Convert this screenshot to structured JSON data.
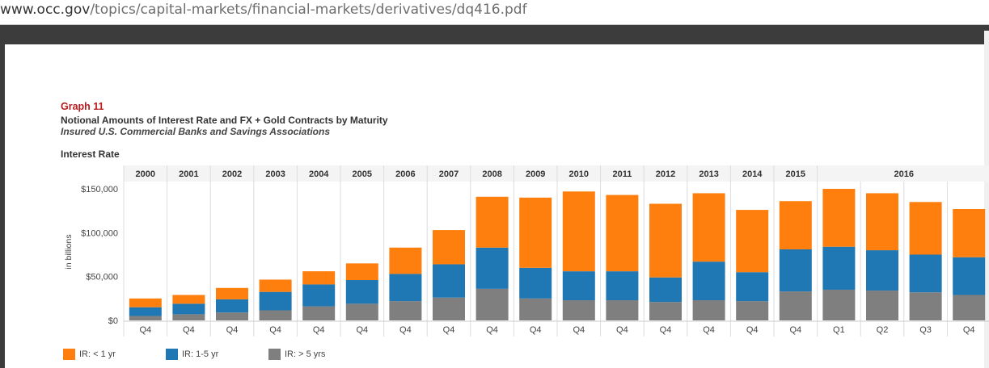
{
  "browser": {
    "url_host": "www.occ.gov",
    "url_path": "/topics/capital-markets/financial-markets/derivatives/dq416.pdf"
  },
  "graph": {
    "label": "Graph 11",
    "title": "Notional Amounts of Interest Rate and FX + Gold Contracts by Maturity",
    "subtitle": "Insured U.S. Commercial Banks and Savings Associations",
    "section": "Interest Rate"
  },
  "chart_data": {
    "type": "bar",
    "stacked": true,
    "title": "Interest Rate",
    "ylabel": "in billions",
    "xlabel": "",
    "ylim": [
      0,
      150000
    ],
    "yticks": [
      0,
      50000,
      100000,
      150000
    ],
    "ytick_labels": [
      "$0",
      "$50,000",
      "$100,000",
      "$150,000"
    ],
    "years": [
      "2000",
      "2001",
      "2002",
      "2003",
      "2004",
      "2005",
      "2006",
      "2007",
      "2008",
      "2009",
      "2010",
      "2011",
      "2012",
      "2013",
      "2014",
      "2015",
      "2016"
    ],
    "categories": [
      "Q4",
      "Q4",
      "Q4",
      "Q4",
      "Q4",
      "Q4",
      "Q4",
      "Q4",
      "Q4",
      "Q4",
      "Q4",
      "Q4",
      "Q4",
      "Q4",
      "Q4",
      "Q4",
      "Q1",
      "Q2",
      "Q3",
      "Q4"
    ],
    "series": [
      {
        "name": "IR: > 5 yrs",
        "color": "#7f7f7f",
        "values": [
          5000,
          7000,
          9000,
          11500,
          16000,
          19000,
          22000,
          26000,
          36000,
          25000,
          23000,
          23000,
          21000,
          23000,
          22000,
          33000,
          35000,
          34000,
          32000,
          29000
        ]
      },
      {
        "name": "IR: 1-5 yr",
        "color": "#1f77b4",
        "values": [
          10000,
          12000,
          15000,
          21000,
          25000,
          27000,
          31000,
          38000,
          47000,
          35000,
          33000,
          33000,
          28000,
          44000,
          33000,
          48000,
          49000,
          46000,
          43000,
          43000
        ]
      },
      {
        "name": "IR: < 1 yr",
        "color": "#ff7f0e",
        "values": [
          10000,
          10000,
          13000,
          14000,
          15000,
          19000,
          30000,
          39000,
          58000,
          80000,
          91000,
          87000,
          84000,
          78000,
          71000,
          55000,
          66000,
          65000,
          60000,
          55000
        ]
      }
    ],
    "legend": {
      "position": "bottom-left",
      "order": [
        "IR: < 1 yr",
        "IR: 1-5 yr",
        "IR: > 5 yrs"
      ]
    },
    "grid": false
  }
}
